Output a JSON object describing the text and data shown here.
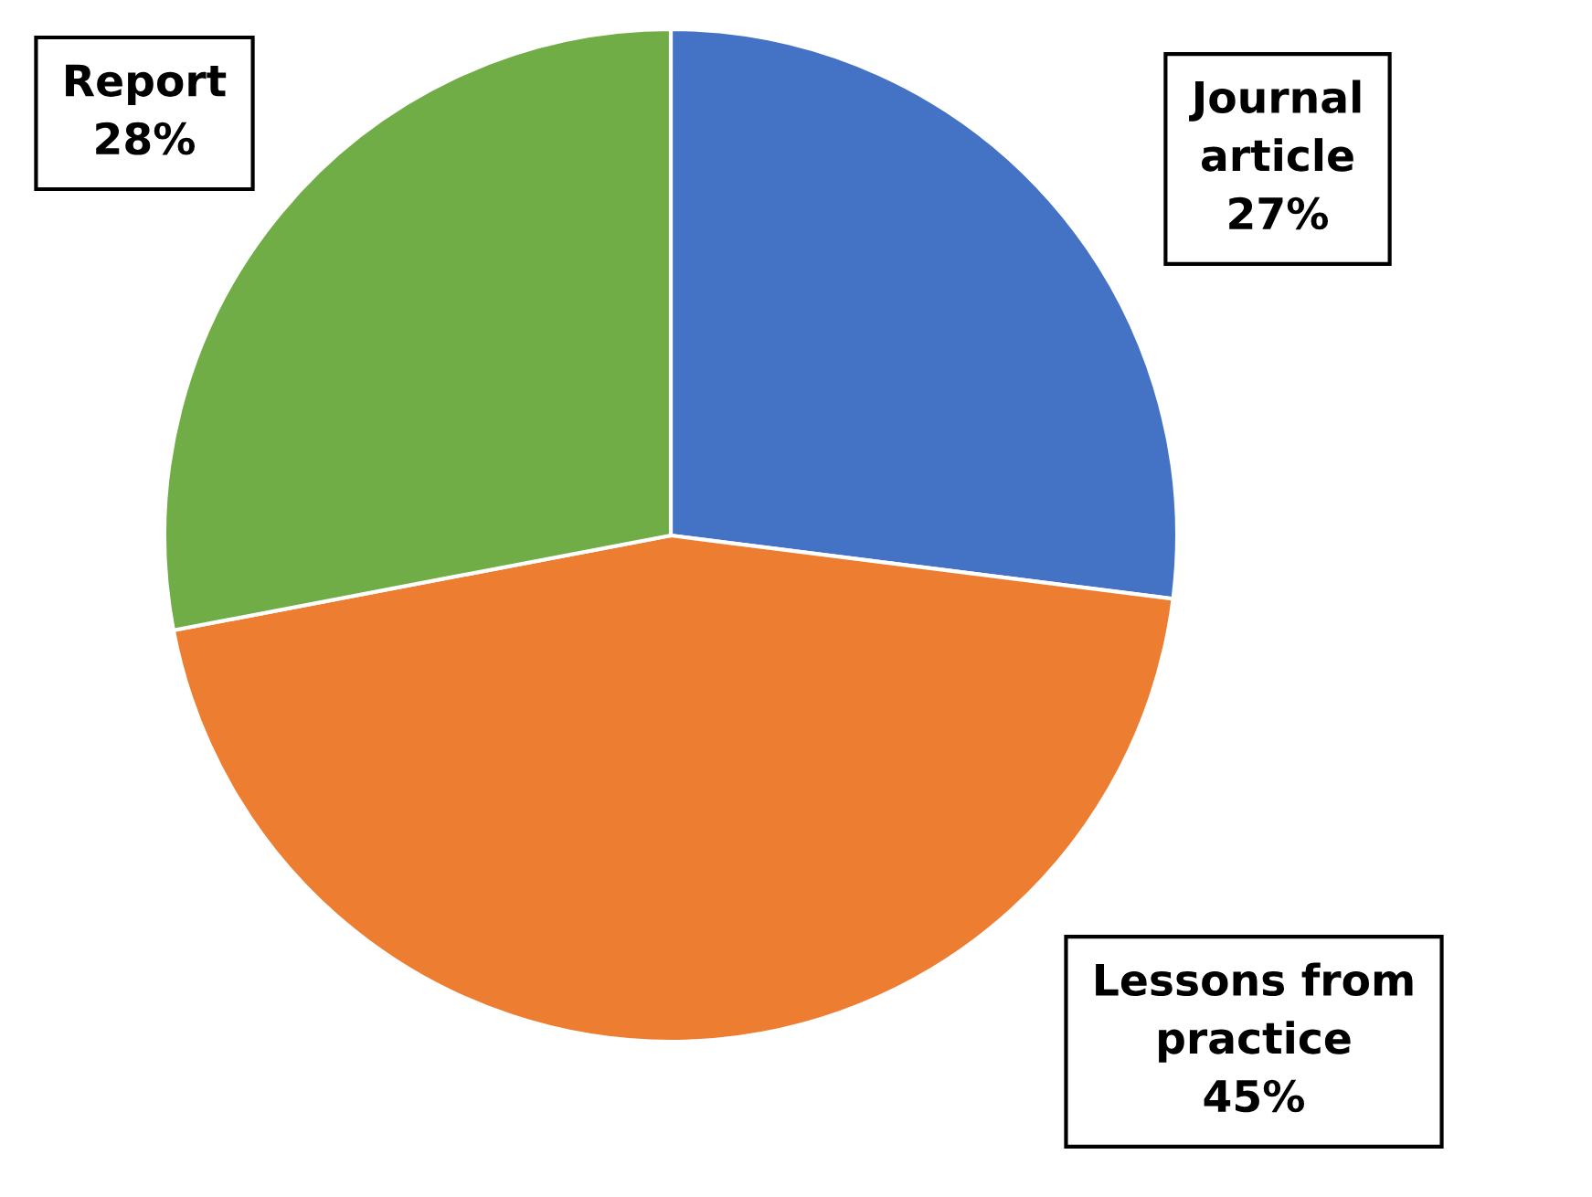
{
  "chart_data": {
    "type": "pie",
    "categories": [
      "Journal article",
      "Lessons from practice",
      "Report"
    ],
    "values": [
      27,
      45,
      28
    ],
    "colors": [
      "#4472c4",
      "#ed7d31",
      "#70ad47"
    ],
    "value_labels": [
      "27%",
      "45%",
      "28%"
    ]
  }
}
